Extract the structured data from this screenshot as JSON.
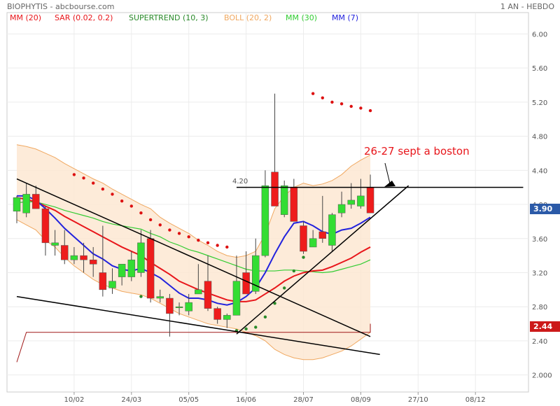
{
  "header": {
    "title": "BIOPHYTIS - abcbourse.com",
    "period": "1 AN - HEBDO"
  },
  "legend": [
    {
      "label": "MM (20)",
      "color": "#e8161b"
    },
    {
      "label": "SAR (0.02, 0.2)",
      "color": "#e8161b"
    },
    {
      "label": "SUPERTREND (10, 3)",
      "color": "#2a8a2a"
    },
    {
      "label": "BOLL (20, 2)",
      "color": "#f0a860"
    },
    {
      "label": "MM (30)",
      "color": "#33cc33"
    },
    {
      "label": "MM (7)",
      "color": "#2222dd"
    }
  ],
  "annotations": {
    "note_text": "26-27 sept a boston",
    "level_label": "4.20"
  },
  "price_tags": {
    "last_price": "3.90",
    "supertrend_level": "2.44"
  },
  "chart_data": {
    "type": "candlestick",
    "title": "BIOPHYTIS - abcbourse.com",
    "ylim": [
      1.8,
      6.25
    ],
    "y_ticks": [
      "2.000",
      "2.40",
      "2.80",
      "3.20",
      "3.60",
      "4.00",
      "4.40",
      "4.80",
      "5.20",
      "5.60",
      "6.00"
    ],
    "y_tick_values": [
      2.0,
      2.4,
      2.8,
      3.2,
      3.6,
      4.0,
      4.4,
      4.8,
      5.2,
      5.6,
      6.0
    ],
    "x_tick_labels": [
      "10/02",
      "24/03",
      "05/05",
      "16/06",
      "28/07",
      "08/09",
      "27/10",
      "08/12"
    ],
    "x_tick_index": [
      6,
      12,
      18,
      24,
      30,
      36,
      42,
      48
    ],
    "candles": [
      {
        "o": 3.92,
        "h": 4.1,
        "l": 3.78,
        "c": 4.08
      },
      {
        "o": 3.9,
        "h": 4.25,
        "l": 3.85,
        "c": 4.12
      },
      {
        "o": 4.12,
        "h": 4.22,
        "l": 3.95,
        "c": 3.95
      },
      {
        "o": 3.95,
        "h": 3.98,
        "l": 3.4,
        "c": 3.55
      },
      {
        "o": 3.52,
        "h": 3.7,
        "l": 3.4,
        "c": 3.55
      },
      {
        "o": 3.52,
        "h": 3.7,
        "l": 3.3,
        "c": 3.35
      },
      {
        "o": 3.35,
        "h": 3.5,
        "l": 3.3,
        "c": 3.4
      },
      {
        "o": 3.4,
        "h": 3.55,
        "l": 3.2,
        "c": 3.35
      },
      {
        "o": 3.35,
        "h": 3.5,
        "l": 3.15,
        "c": 3.3
      },
      {
        "o": 3.2,
        "h": 3.75,
        "l": 2.92,
        "c": 3.0
      },
      {
        "o": 3.02,
        "h": 3.25,
        "l": 2.95,
        "c": 3.1
      },
      {
        "o": 3.15,
        "h": 3.3,
        "l": 3.05,
        "c": 3.3
      },
      {
        "o": 3.15,
        "h": 3.45,
        "l": 3.1,
        "c": 3.35
      },
      {
        "o": 3.2,
        "h": 3.7,
        "l": 3.15,
        "c": 3.55
      },
      {
        "o": 3.6,
        "h": 3.7,
        "l": 2.85,
        "c": 2.9
      },
      {
        "o": 2.9,
        "h": 3.0,
        "l": 2.85,
        "c": 2.92
      },
      {
        "o": 2.9,
        "h": 2.95,
        "l": 2.45,
        "c": 2.72
      },
      {
        "o": 2.8,
        "h": 2.85,
        "l": 2.7,
        "c": 2.8
      },
      {
        "o": 2.75,
        "h": 2.95,
        "l": 2.7,
        "c": 2.85
      },
      {
        "o": 2.95,
        "h": 3.3,
        "l": 2.95,
        "c": 3.0
      },
      {
        "o": 3.1,
        "h": 3.4,
        "l": 2.75,
        "c": 2.78
      },
      {
        "o": 2.78,
        "h": 2.8,
        "l": 2.6,
        "c": 2.65
      },
      {
        "o": 2.65,
        "h": 2.72,
        "l": 2.55,
        "c": 2.7
      },
      {
        "o": 2.7,
        "h": 3.4,
        "l": 2.7,
        "c": 3.1
      },
      {
        "o": 3.2,
        "h": 3.45,
        "l": 2.95,
        "c": 2.95
      },
      {
        "o": 2.98,
        "h": 3.6,
        "l": 2.95,
        "c": 3.4
      },
      {
        "o": 3.4,
        "h": 4.4,
        "l": 3.38,
        "c": 4.22
      },
      {
        "o": 4.38,
        "h": 5.3,
        "l": 4.0,
        "c": 3.98
      },
      {
        "o": 3.88,
        "h": 4.28,
        "l": 3.85,
        "c": 4.22
      },
      {
        "o": 4.2,
        "h": 4.3,
        "l": 3.8,
        "c": 3.8
      },
      {
        "o": 3.75,
        "h": 3.8,
        "l": 3.42,
        "c": 3.45
      },
      {
        "o": 3.5,
        "h": 3.7,
        "l": 3.5,
        "c": 3.6
      },
      {
        "o": 3.68,
        "h": 4.1,
        "l": 3.55,
        "c": 3.6
      },
      {
        "o": 3.52,
        "h": 3.9,
        "l": 3.45,
        "c": 3.88
      },
      {
        "o": 3.9,
        "h": 4.15,
        "l": 3.85,
        "c": 4.0
      },
      {
        "o": 4.0,
        "h": 4.25,
        "l": 3.95,
        "c": 4.05
      },
      {
        "o": 3.98,
        "h": 4.3,
        "l": 3.95,
        "c": 4.1
      },
      {
        "o": 4.2,
        "h": 4.35,
        "l": 3.9,
        "c": 3.9
      }
    ],
    "boll_upper": [
      4.7,
      4.68,
      4.65,
      4.6,
      4.55,
      4.48,
      4.42,
      4.36,
      4.3,
      4.25,
      4.18,
      4.12,
      4.06,
      4.0,
      3.95,
      3.85,
      3.78,
      3.72,
      3.66,
      3.58,
      3.52,
      3.45,
      3.4,
      3.38,
      3.4,
      3.45,
      3.65,
      3.95,
      4.1,
      4.2,
      4.25,
      4.22,
      4.24,
      4.28,
      4.35,
      4.45,
      4.52,
      4.58
    ],
    "boll_lower": [
      3.82,
      3.76,
      3.7,
      3.58,
      3.5,
      3.38,
      3.28,
      3.2,
      3.12,
      3.06,
      3.02,
      2.98,
      2.96,
      2.94,
      2.9,
      2.84,
      2.78,
      2.72,
      2.68,
      2.64,
      2.6,
      2.58,
      2.56,
      2.54,
      2.5,
      2.46,
      2.4,
      2.3,
      2.24,
      2.2,
      2.18,
      2.18,
      2.2,
      2.24,
      2.28,
      2.34,
      2.42,
      2.5
    ],
    "mm30": [
      4.02,
      4.03,
      4.03,
      4.0,
      3.97,
      3.93,
      3.9,
      3.87,
      3.84,
      3.8,
      3.77,
      3.75,
      3.73,
      3.71,
      3.66,
      3.62,
      3.56,
      3.52,
      3.47,
      3.44,
      3.4,
      3.36,
      3.32,
      3.28,
      3.24,
      3.22,
      3.22,
      3.22,
      3.23,
      3.23,
      3.22,
      3.21,
      3.2,
      3.21,
      3.24,
      3.27,
      3.3,
      3.35
    ],
    "mm20": [
      4.08,
      4.06,
      4.03,
      3.98,
      3.93,
      3.86,
      3.8,
      3.74,
      3.68,
      3.62,
      3.56,
      3.5,
      3.45,
      3.4,
      3.32,
      3.25,
      3.18,
      3.1,
      3.05,
      3.0,
      2.96,
      2.92,
      2.88,
      2.86,
      2.86,
      2.88,
      2.95,
      3.02,
      3.1,
      3.16,
      3.2,
      3.22,
      3.23,
      3.27,
      3.32,
      3.37,
      3.44,
      3.5
    ],
    "mm7": [
      4.1,
      4.1,
      4.05,
      3.95,
      3.84,
      3.72,
      3.62,
      3.52,
      3.42,
      3.36,
      3.28,
      3.24,
      3.22,
      3.25,
      3.2,
      3.14,
      3.05,
      2.96,
      2.9,
      2.9,
      2.88,
      2.84,
      2.82,
      2.85,
      2.92,
      3.02,
      3.2,
      3.42,
      3.62,
      3.78,
      3.8,
      3.75,
      3.68,
      3.65,
      3.7,
      3.72,
      3.78,
      3.85
    ],
    "sar": [
      {
        "i": 6,
        "v": 4.35
      },
      {
        "i": 7,
        "v": 4.31
      },
      {
        "i": 8,
        "v": 4.25
      },
      {
        "i": 9,
        "v": 4.18
      },
      {
        "i": 10,
        "v": 4.12
      },
      {
        "i": 11,
        "v": 4.04
      },
      {
        "i": 12,
        "v": 3.98
      },
      {
        "i": 13,
        "v": 3.9
      },
      {
        "i": 14,
        "v": 3.82
      },
      {
        "i": 15,
        "v": 3.76
      },
      {
        "i": 16,
        "v": 3.7
      },
      {
        "i": 17,
        "v": 3.66
      },
      {
        "i": 18,
        "v": 3.62
      },
      {
        "i": 19,
        "v": 3.58
      },
      {
        "i": 20,
        "v": 3.55
      },
      {
        "i": 21,
        "v": 3.52
      },
      {
        "i": 22,
        "v": 3.5
      },
      {
        "i": 13,
        "v": 2.92,
        "supertrend": true
      },
      {
        "i": 23,
        "v": 2.52
      },
      {
        "i": 24,
        "v": 2.54
      },
      {
        "i": 25,
        "v": 2.56
      },
      {
        "i": 26,
        "v": 2.68
      },
      {
        "i": 27,
        "v": 2.84
      },
      {
        "i": 28,
        "v": 3.02
      },
      {
        "i": 29,
        "v": 3.22
      },
      {
        "i": 30,
        "v": 3.38
      },
      {
        "i": 31,
        "v": 5.3
      },
      {
        "i": 32,
        "v": 5.25
      },
      {
        "i": 33,
        "v": 5.2
      },
      {
        "i": 34,
        "v": 5.18
      },
      {
        "i": 35,
        "v": 5.15
      },
      {
        "i": 36,
        "v": 5.13
      },
      {
        "i": 37,
        "v": 5.1
      }
    ],
    "supertrend_line": [
      {
        "i": 0,
        "v": 2.15
      },
      {
        "i": 1,
        "v": 2.5
      },
      {
        "i": 37,
        "v": 2.5
      },
      {
        "i": 37,
        "v": 2.6
      }
    ],
    "trendlines": [
      {
        "from": {
          "i": 0,
          "v": 4.3
        },
        "to": {
          "i": 37,
          "v": 2.45
        }
      },
      {
        "from": {
          "i": 0,
          "v": 2.92
        },
        "to": {
          "i": 38,
          "v": 2.24
        }
      },
      {
        "from": {
          "i": 23,
          "v": 2.48
        },
        "to": {
          "i": 41,
          "v": 4.22
        }
      }
    ],
    "horizontal_level": {
      "value": 4.2,
      "from_i": 23,
      "to_i": 53
    }
  }
}
